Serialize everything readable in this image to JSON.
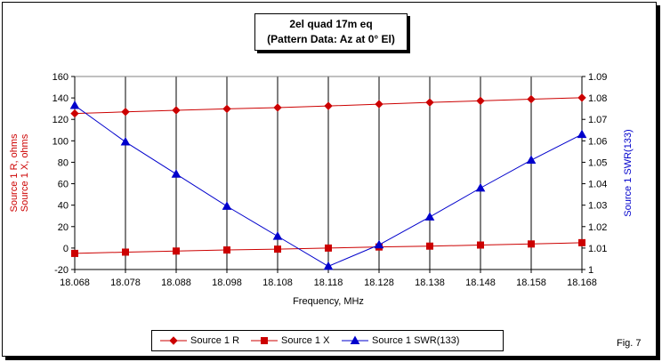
{
  "title_lines": [
    "2el quad 17m eq",
    "(Pattern Data: Az at 0° El)"
  ],
  "fig_label": "Fig. 7",
  "chart_data": {
    "type": "line",
    "x": [
      18.068,
      18.078,
      18.088,
      18.098,
      18.108,
      18.118,
      18.128,
      18.138,
      18.148,
      18.158,
      18.168
    ],
    "x_tick_labels": [
      "18.068",
      "18.078",
      "18.088",
      "18.098",
      "18.108",
      "18.118",
      "18.128",
      "18.138",
      "18.148",
      "18.158",
      "18.168"
    ],
    "xlabel": "Frequency, MHz",
    "ylabel_left_lines": [
      "Source 1 R, ohms",
      "Source 1 X, ohms"
    ],
    "ylabel_right": "Source 1 SWR(133)",
    "ylim_left": [
      -20,
      160
    ],
    "yticks_left": [
      -20,
      0,
      20,
      40,
      60,
      80,
      100,
      120,
      140,
      160
    ],
    "ylim_right": [
      1,
      1.09
    ],
    "yticks_right": [
      "1",
      "1.01",
      "1.02",
      "1.03",
      "1.04",
      "1.05",
      "1.06",
      "1.07",
      "1.08",
      "1.09"
    ],
    "grid": "vertical",
    "legend_position": "bottom",
    "series": [
      {
        "name": "Source 1 R",
        "axis": "left",
        "marker": "diamond",
        "color": "#cc0000",
        "values": [
          125.5,
          127,
          128.5,
          129.8,
          131,
          132.5,
          134.2,
          135.8,
          137.3,
          138.8,
          140.2
        ]
      },
      {
        "name": "Source 1 X",
        "axis": "left",
        "marker": "square",
        "color": "#cc0000",
        "values": [
          -5,
          -3.8,
          -2.8,
          -1.8,
          -1,
          0,
          1,
          1.8,
          2.8,
          3.8,
          5
        ]
      },
      {
        "name": "Source 1 SWR(133)",
        "axis": "right",
        "marker": "triangle",
        "color": "#0000cc",
        "values": [
          1.0765,
          1.0595,
          1.0445,
          1.0295,
          1.0155,
          1.0015,
          1.0115,
          1.0245,
          1.038,
          1.051,
          1.063
        ]
      }
    ]
  }
}
